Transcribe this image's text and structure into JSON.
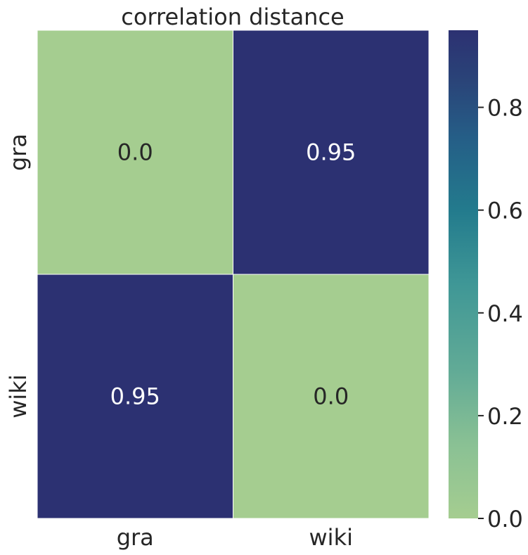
{
  "chart_data": {
    "type": "heatmap",
    "title": "correlation distance",
    "xlabel": "",
    "ylabel": "",
    "x_categories": [
      "gra",
      "wiki"
    ],
    "y_categories": [
      "gra",
      "wiki"
    ],
    "values": [
      [
        0.0,
        0.95
      ],
      [
        0.95,
        0.0
      ]
    ],
    "value_labels": [
      [
        "0.0",
        "0.95"
      ],
      [
        "0.95",
        "0.0"
      ]
    ],
    "colormap": "crest",
    "vmin": 0.0,
    "vmax": 0.95,
    "colorbar": {
      "ticks": [
        0.0,
        0.2,
        0.4,
        0.6,
        0.8
      ],
      "tick_labels": [
        "0.0",
        "0.2",
        "0.4",
        "0.6",
        "0.8"
      ],
      "placement": "right"
    },
    "colors": {
      "low": "#a5cd90",
      "mid": "#2f8a94",
      "high": "#2c3172",
      "grid_line": "#ffffff",
      "text_on_dark": "#ffffff",
      "text_on_light": "#262626"
    }
  }
}
